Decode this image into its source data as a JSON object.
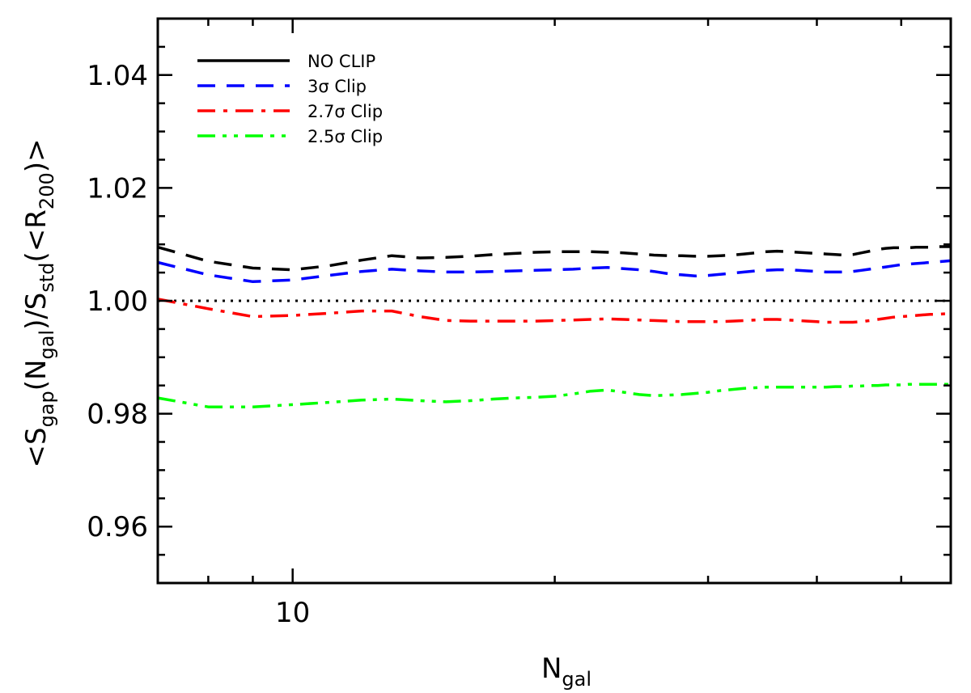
{
  "chart_data": {
    "type": "line",
    "xscale": "log",
    "xlim": [
      7.0,
      57.0
    ],
    "ylim": [
      0.95,
      1.05
    ],
    "x_major_ticks": [
      10
    ],
    "x_tick_labels": [
      "10"
    ],
    "y_ticks": [
      0.96,
      0.98,
      1.0,
      1.02,
      1.04
    ],
    "y_tick_labels": [
      "0.96",
      "0.98",
      "1.00",
      "1.02",
      "1.04"
    ],
    "xlabel": {
      "base": "N",
      "sub": "gal"
    },
    "ylabel": {
      "parts": [
        {
          "t": "<S",
          "sub": false
        },
        {
          "t": "gap",
          "sub": true
        },
        {
          "t": "(N",
          "sub": false
        },
        {
          "t": "gal",
          "sub": true
        },
        {
          "t": ")/S",
          "sub": false
        },
        {
          "t": "std",
          "sub": true
        },
        {
          "t": "(<R",
          "sub": false
        },
        {
          "t": "200",
          "sub": true
        },
        {
          "t": ")>",
          "sub": false
        }
      ]
    },
    "reference_line": {
      "y": 1.0,
      "color": "#000000",
      "style": "dotted"
    },
    "legend_position": "top-left",
    "x": [
      7,
      8,
      9,
      10,
      11,
      12,
      13,
      14,
      15,
      16,
      17,
      18,
      19,
      20,
      21,
      22,
      23,
      24,
      25,
      26,
      27,
      28,
      29,
      30,
      31,
      32,
      33,
      34,
      35,
      36,
      37,
      38,
      39,
      40,
      41,
      42,
      43,
      44,
      45,
      46,
      47,
      48,
      49,
      50,
      51,
      52,
      53,
      54,
      55,
      56,
      57
    ],
    "series": [
      {
        "name": "NO CLIP",
        "color": "#000000",
        "style": "dashed",
        "values": [
          1.0095,
          1.007,
          1.0058,
          1.0055,
          1.0062,
          1.0072,
          1.008,
          1.0076,
          1.0077,
          1.0079,
          1.0082,
          1.0084,
          1.0086,
          1.0087,
          1.0087,
          1.0087,
          1.0086,
          1.0085,
          1.0083,
          1.0081,
          1.008,
          1.008,
          1.0079,
          1.0079,
          1.008,
          1.0081,
          1.0083,
          1.0085,
          1.0087,
          1.0088,
          1.0087,
          1.0086,
          1.0085,
          1.0084,
          1.0083,
          1.0082,
          1.0081,
          1.0082,
          1.0085,
          1.0088,
          1.0091,
          1.0093,
          1.0094,
          1.0094,
          1.0094,
          1.0095,
          1.0095,
          1.0095,
          1.0096,
          1.0096,
          1.0096
        ]
      },
      {
        "name": "3σ Clip",
        "color": "#0000ff",
        "style": "dashed",
        "values": [
          1.0068,
          1.0046,
          1.0034,
          1.0037,
          1.0045,
          1.0052,
          1.0056,
          1.0053,
          1.0051,
          1.0051,
          1.0052,
          1.0053,
          1.0054,
          1.0055,
          1.0056,
          1.0058,
          1.0059,
          1.0057,
          1.0055,
          1.0052,
          1.0048,
          1.0046,
          1.0044,
          1.0045,
          1.0047,
          1.0049,
          1.0051,
          1.0053,
          1.0054,
          1.0055,
          1.0055,
          1.0054,
          1.0053,
          1.0052,
          1.0051,
          1.0051,
          1.0051,
          1.0052,
          1.0054,
          1.0056,
          1.0058,
          1.006,
          1.0062,
          1.0064,
          1.0065,
          1.0066,
          1.0067,
          1.0068,
          1.0069,
          1.007,
          1.0071
        ]
      },
      {
        "name": "2.7σ Clip",
        "color": "#ff0000",
        "style": "dashdot",
        "values": [
          1.0003,
          0.9986,
          0.9972,
          0.9974,
          0.9978,
          0.9982,
          0.9982,
          0.9972,
          0.9965,
          0.9964,
          0.9964,
          0.9964,
          0.9964,
          0.9965,
          0.9966,
          0.9967,
          0.9968,
          0.9967,
          0.9966,
          0.9965,
          0.9964,
          0.9963,
          0.9963,
          0.9963,
          0.9963,
          0.9964,
          0.9965,
          0.9966,
          0.9967,
          0.9967,
          0.9966,
          0.9965,
          0.9964,
          0.9963,
          0.9962,
          0.9962,
          0.9962,
          0.9962,
          0.9963,
          0.9965,
          0.9967,
          0.9969,
          0.9971,
          0.9972,
          0.9973,
          0.9974,
          0.9975,
          0.9976,
          0.9976,
          0.9977,
          0.9977
        ]
      },
      {
        "name": "2.5σ Clip",
        "color": "#00ff00",
        "style": "dashdotdot",
        "values": [
          0.9828,
          0.9812,
          0.9812,
          0.9816,
          0.982,
          0.9824,
          0.9826,
          0.9823,
          0.9821,
          0.9823,
          0.9826,
          0.9828,
          0.9829,
          0.9831,
          0.9835,
          0.984,
          0.9842,
          0.9838,
          0.9834,
          0.9832,
          0.9833,
          0.9834,
          0.9836,
          0.9838,
          0.9841,
          0.9843,
          0.9845,
          0.9846,
          0.9847,
          0.9847,
          0.9847,
          0.9847,
          0.9847,
          0.9847,
          0.9847,
          0.9848,
          0.9848,
          0.9849,
          0.9849,
          0.985,
          0.985,
          0.9851,
          0.9851,
          0.9851,
          0.9852,
          0.9852,
          0.9852,
          0.9852,
          0.9852,
          0.9852,
          0.9852
        ]
      }
    ]
  }
}
